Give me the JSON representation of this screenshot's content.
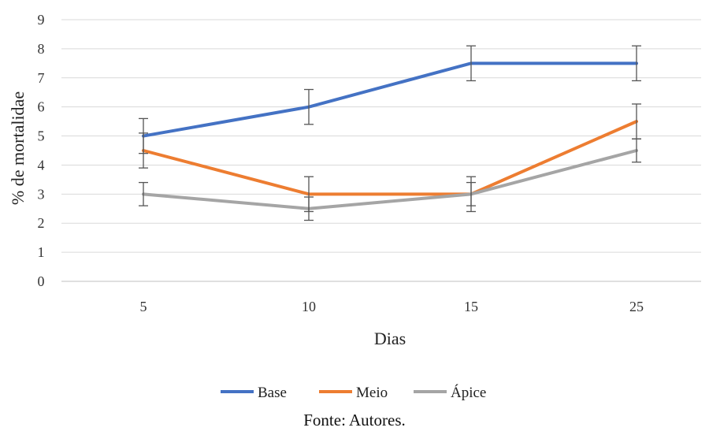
{
  "chart_data": {
    "type": "line",
    "x": [
      "5",
      "10",
      "15",
      "25"
    ],
    "xlabel": "Dias",
    "ylabel": "% de mortalidae",
    "ylim": [
      0,
      9
    ],
    "yticks": [
      "0",
      "1",
      "2",
      "3",
      "4",
      "5",
      "6",
      "7",
      "8",
      "9"
    ],
    "grid": true,
    "legend_position": "bottom",
    "series": [
      {
        "name": "Base",
        "color": "#4472C4",
        "values": [
          5,
          6,
          7.5,
          7.5
        ],
        "error": [
          0.6,
          0.6,
          0.6,
          0.6
        ]
      },
      {
        "name": "Meio",
        "color": "#ED7D31",
        "values": [
          4.5,
          3,
          3,
          5.5
        ],
        "error": [
          0.6,
          0.6,
          0.6,
          0.6
        ]
      },
      {
        "name": "Ápice",
        "color": "#A5A5A5",
        "values": [
          3,
          2.5,
          3,
          4.5
        ],
        "error": [
          0.4,
          0.4,
          0.4,
          0.4
        ]
      }
    ]
  },
  "caption": "Fonte: Autores."
}
